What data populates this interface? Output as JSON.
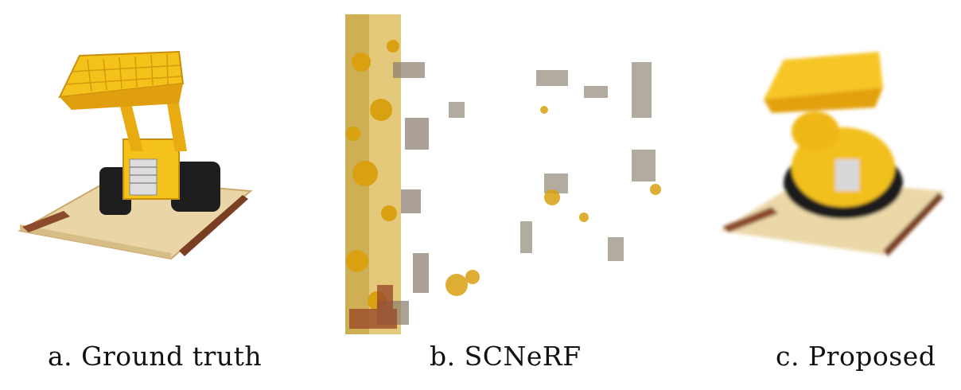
{
  "figure": {
    "panels": [
      {
        "caption": "a. Ground truth",
        "image": "lego-bulldozer-ground-truth"
      },
      {
        "caption": "b. SCNeRF",
        "image": "scnerf-noisy-reconstruction"
      },
      {
        "caption": "c. Proposed",
        "image": "lego-bulldozer-proposed-reconstruction"
      }
    ]
  },
  "colors": {
    "bucket_yellow": "#f5c21b",
    "dark_yellow": "#d99a0a",
    "base_tan": "#e9d5a6",
    "wood_brown": "#8b4a2b",
    "track_black": "#1e1e1e"
  }
}
